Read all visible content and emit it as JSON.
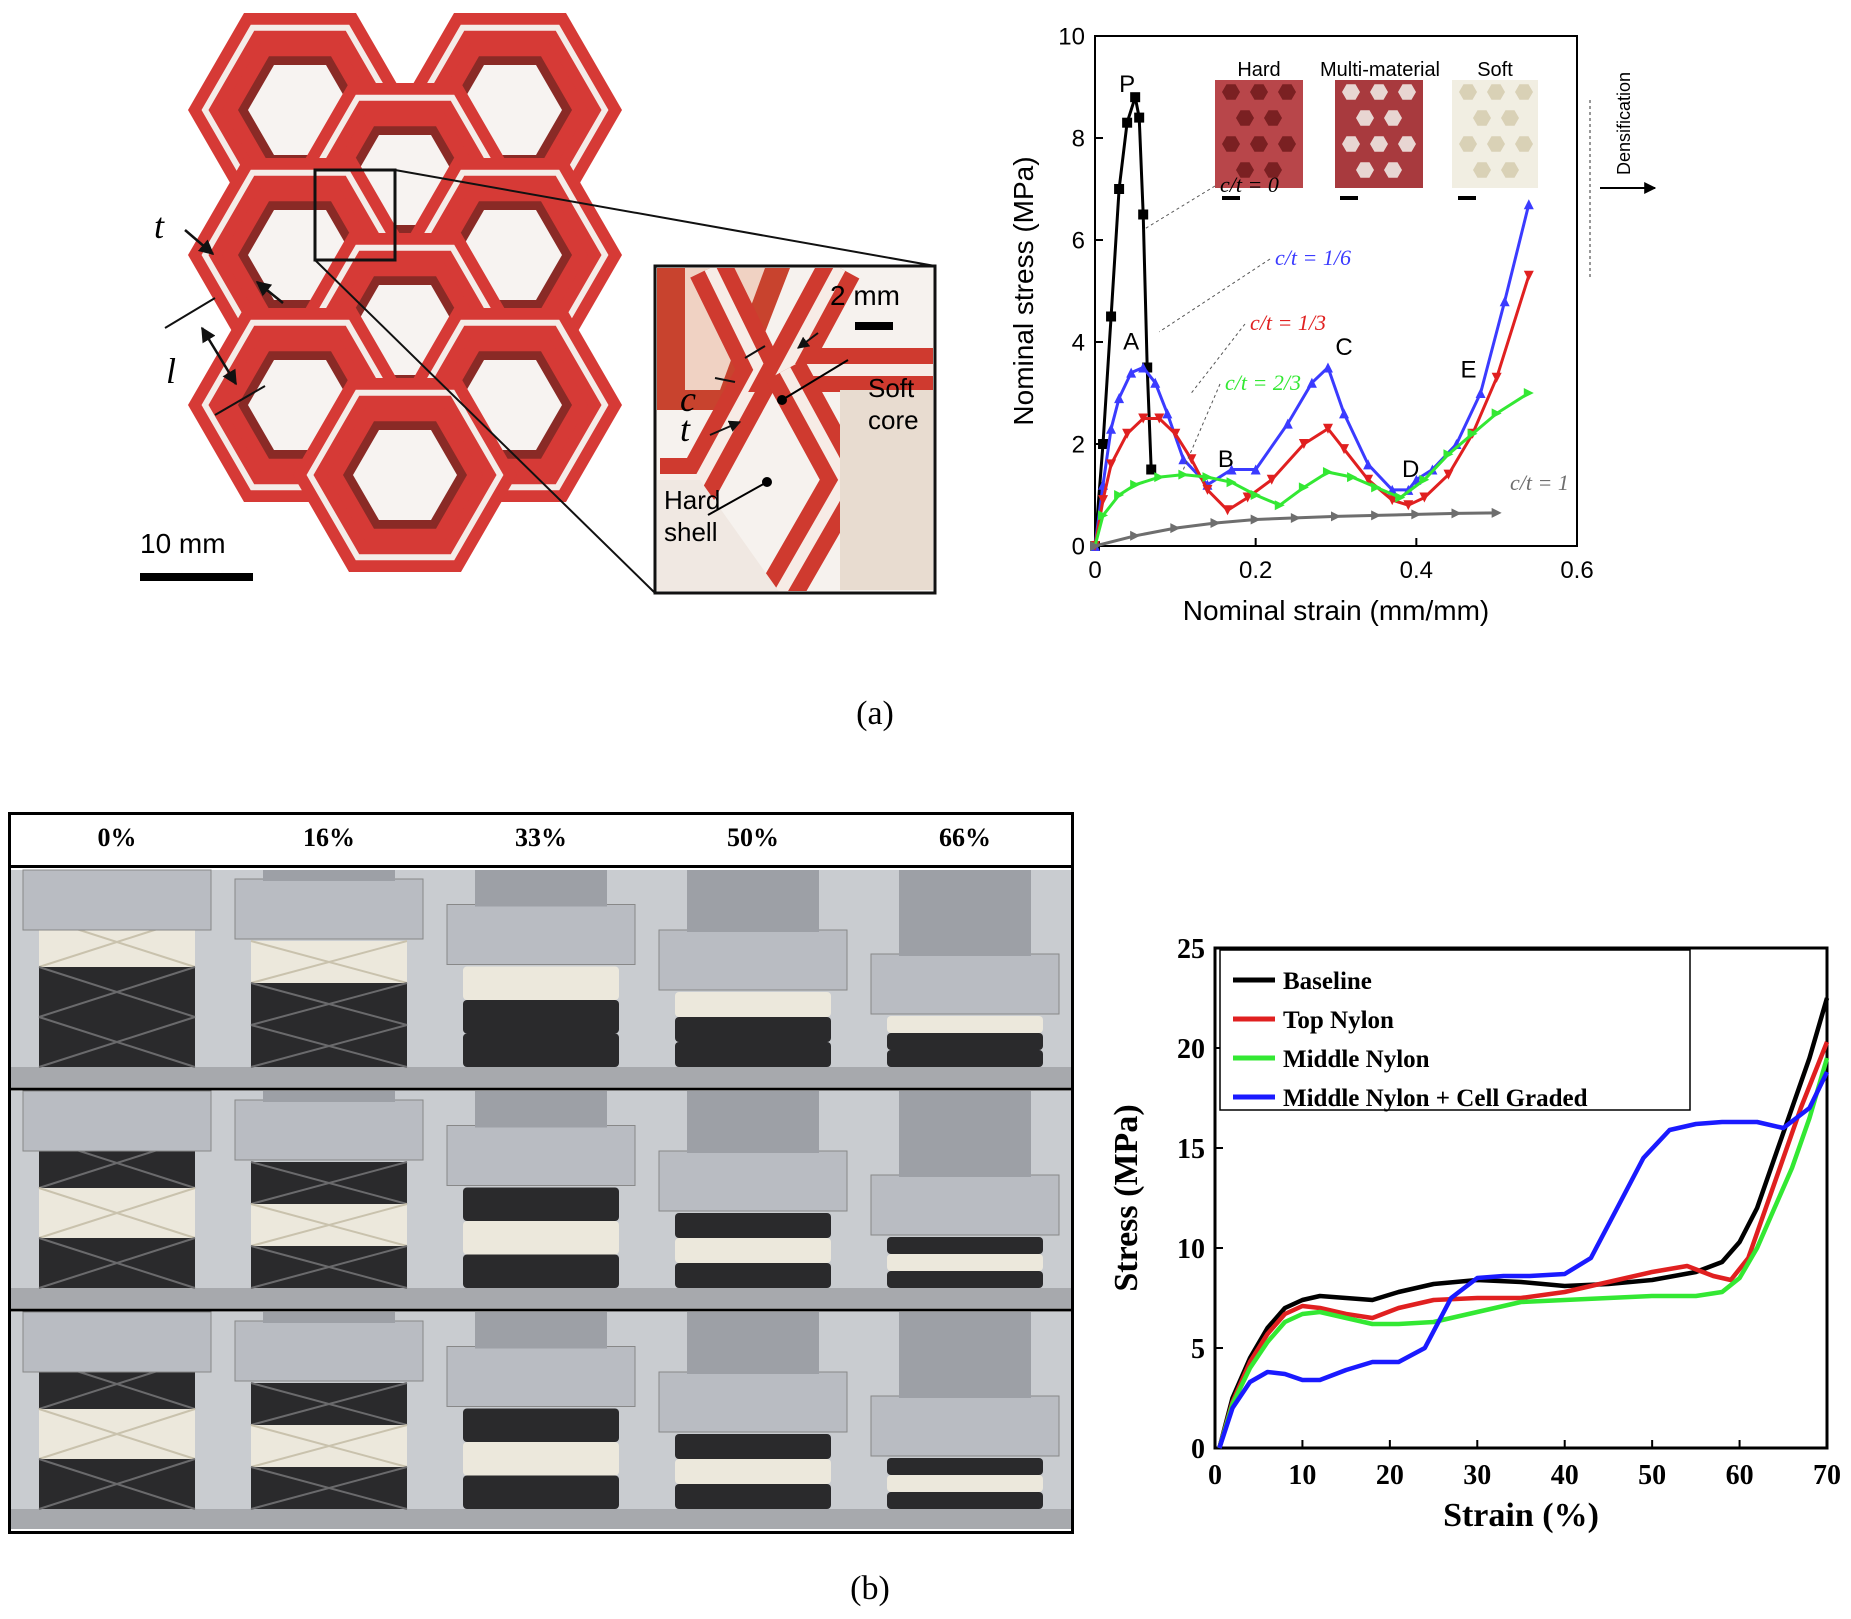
{
  "panel_a": {
    "caption": "(a)",
    "photo": {
      "label_t": "t",
      "label_l": "l",
      "label_c": "c",
      "scalebar_main": "10 mm",
      "scalebar_inset": "2 mm",
      "label_soft_core_1": "Soft",
      "label_soft_core_2": "core",
      "label_hard_shell_1": "Hard",
      "label_hard_shell_2": "shell"
    },
    "thumbnails": [
      "Hard",
      "Multi-material",
      "Soft"
    ],
    "densification_label": "Densification",
    "point_labels": [
      "P",
      "A",
      "B",
      "C",
      "D",
      "E"
    ],
    "colors": {
      "ct0": "#000000",
      "ct16": "#3b3bff",
      "ct13": "#e02020",
      "ct23": "#33e833",
      "ct1": "#6e6e6e",
      "shell": "#d63a36",
      "core": "#f4ece8"
    }
  },
  "panel_b": {
    "caption": "(b)",
    "strain_labels": [
      "0%",
      "16%",
      "33%",
      "50%",
      "66%"
    ]
  },
  "chart_data": [
    {
      "type": "line",
      "xlabel": "Nominal strain (mm/mm)",
      "ylabel": "Nominal stress (MPa)",
      "xlim": [
        0,
        0.6
      ],
      "ylim": [
        0,
        10
      ],
      "xticks": [
        "0",
        "0.2",
        "0.4",
        "0.6"
      ],
      "yticks": [
        "0",
        "2",
        "4",
        "6",
        "8",
        "10"
      ],
      "grid": false,
      "series": [
        {
          "name": "c/t = 0",
          "color": "#000000",
          "marker": "square",
          "x": [
            0,
            0.01,
            0.02,
            0.03,
            0.04,
            0.05,
            0.055,
            0.06,
            0.065,
            0.07
          ],
          "y": [
            0,
            2.0,
            4.5,
            7.0,
            8.3,
            8.8,
            8.4,
            6.5,
            3.5,
            1.5
          ]
        },
        {
          "name": "c/t = 1/6",
          "color": "#3b3bff",
          "marker": "triangle-up",
          "x": [
            0,
            0.01,
            0.02,
            0.03,
            0.045,
            0.06,
            0.075,
            0.09,
            0.11,
            0.14,
            0.17,
            0.2,
            0.24,
            0.27,
            0.29,
            0.31,
            0.34,
            0.37,
            0.39,
            0.4,
            0.42,
            0.45,
            0.48,
            0.51,
            0.54
          ],
          "y": [
            0,
            1.2,
            2.3,
            2.9,
            3.4,
            3.5,
            3.2,
            2.6,
            1.7,
            1.2,
            1.5,
            1.5,
            2.4,
            3.2,
            3.5,
            2.6,
            1.6,
            1.1,
            1.1,
            1.3,
            1.5,
            2.0,
            3.0,
            4.8,
            6.7
          ]
        },
        {
          "name": "c/t = 1/3",
          "color": "#e02020",
          "marker": "triangle-down",
          "x": [
            0,
            0.01,
            0.02,
            0.04,
            0.06,
            0.08,
            0.1,
            0.12,
            0.14,
            0.165,
            0.19,
            0.22,
            0.26,
            0.29,
            0.31,
            0.34,
            0.37,
            0.39,
            0.41,
            0.44,
            0.47,
            0.5,
            0.54
          ],
          "y": [
            0,
            0.9,
            1.6,
            2.2,
            2.5,
            2.5,
            2.2,
            1.7,
            1.1,
            0.7,
            0.95,
            1.3,
            2.0,
            2.3,
            1.9,
            1.3,
            0.9,
            0.8,
            0.95,
            1.4,
            2.2,
            3.3,
            5.3
          ]
        },
        {
          "name": "c/t = 2/3",
          "color": "#33e833",
          "marker": "triangle-right",
          "x": [
            0,
            0.01,
            0.03,
            0.05,
            0.08,
            0.11,
            0.14,
            0.17,
            0.2,
            0.23,
            0.26,
            0.29,
            0.32,
            0.35,
            0.38,
            0.41,
            0.44,
            0.47,
            0.5,
            0.54
          ],
          "y": [
            0,
            0.6,
            1.0,
            1.2,
            1.35,
            1.4,
            1.35,
            1.25,
            1.0,
            0.8,
            1.15,
            1.45,
            1.35,
            1.15,
            0.95,
            1.3,
            1.8,
            2.2,
            2.6,
            3.0
          ]
        },
        {
          "name": "c/t = 1",
          "color": "#6e6e6e",
          "marker": "triangle-right",
          "x": [
            0,
            0.05,
            0.1,
            0.15,
            0.2,
            0.25,
            0.3,
            0.35,
            0.4,
            0.45,
            0.5
          ],
          "y": [
            0,
            0.2,
            0.35,
            0.45,
            0.52,
            0.55,
            0.58,
            0.6,
            0.62,
            0.64,
            0.65
          ]
        }
      ],
      "annotations": [
        "c/t = 0",
        "c/t = 1/6",
        "c/t = 1/3",
        "c/t = 2/3",
        "c/t = 1",
        "P",
        "A",
        "B",
        "C",
        "D",
        "E",
        "Densification"
      ]
    },
    {
      "type": "line",
      "xlabel": "Strain (%)",
      "ylabel": "Stress (MPa)",
      "xlim": [
        0,
        70
      ],
      "ylim": [
        0,
        25
      ],
      "xticks": [
        "0",
        "10",
        "20",
        "30",
        "40",
        "50",
        "60",
        "70"
      ],
      "yticks": [
        "0",
        "5",
        "10",
        "15",
        "20",
        "25"
      ],
      "legend_position": "top-left",
      "grid": false,
      "series": [
        {
          "name": "Baseline",
          "color": "#000000",
          "x": [
            0.5,
            2,
            4,
            6,
            8,
            10,
            12,
            15,
            18,
            21,
            25,
            30,
            35,
            40,
            45,
            50,
            55,
            58,
            60,
            62,
            64,
            66,
            68,
            70
          ],
          "y": [
            0,
            2.5,
            4.5,
            6.0,
            7.0,
            7.4,
            7.6,
            7.5,
            7.4,
            7.8,
            8.2,
            8.4,
            8.3,
            8.1,
            8.2,
            8.4,
            8.8,
            9.3,
            10.3,
            12.0,
            14.5,
            17.0,
            19.5,
            22.5
          ]
        },
        {
          "name": "Top Nylon",
          "color": "#e02020",
          "x": [
            0.5,
            2,
            4,
            6,
            8,
            10,
            12,
            15,
            18,
            21,
            25,
            30,
            35,
            40,
            45,
            50,
            54,
            57,
            59,
            61,
            63,
            65,
            67,
            70
          ],
          "y": [
            0,
            2.3,
            4.3,
            5.7,
            6.7,
            7.1,
            7.0,
            6.7,
            6.5,
            7.0,
            7.4,
            7.5,
            7.5,
            7.8,
            8.3,
            8.8,
            9.1,
            8.6,
            8.4,
            9.5,
            12.0,
            14.5,
            17.0,
            20.3
          ]
        },
        {
          "name": "Middle Nylon",
          "color": "#33e833",
          "x": [
            0.5,
            2,
            4,
            6,
            8,
            10,
            12,
            15,
            18,
            21,
            25,
            30,
            35,
            40,
            45,
            50,
            55,
            58,
            60,
            62,
            64,
            66,
            68,
            70
          ],
          "y": [
            0,
            2.2,
            4.0,
            5.3,
            6.3,
            6.7,
            6.8,
            6.5,
            6.2,
            6.2,
            6.3,
            6.8,
            7.3,
            7.4,
            7.5,
            7.6,
            7.6,
            7.8,
            8.5,
            10.0,
            12.0,
            14.0,
            16.5,
            19.5
          ]
        },
        {
          "name": "Middle Nylon + Cell Graded",
          "color": "#1a1aff",
          "x": [
            0.5,
            2,
            4,
            6,
            8,
            10,
            12,
            15,
            18,
            21,
            24,
            27,
            30,
            33,
            36,
            40,
            43,
            46,
            49,
            52,
            55,
            58,
            62,
            65,
            68,
            70
          ],
          "y": [
            0,
            2.0,
            3.3,
            3.8,
            3.7,
            3.4,
            3.4,
            3.9,
            4.3,
            4.3,
            5.0,
            7.5,
            8.5,
            8.6,
            8.6,
            8.7,
            9.5,
            12.0,
            14.5,
            15.9,
            16.2,
            16.3,
            16.3,
            16.0,
            17.0,
            18.8
          ]
        }
      ]
    }
  ]
}
